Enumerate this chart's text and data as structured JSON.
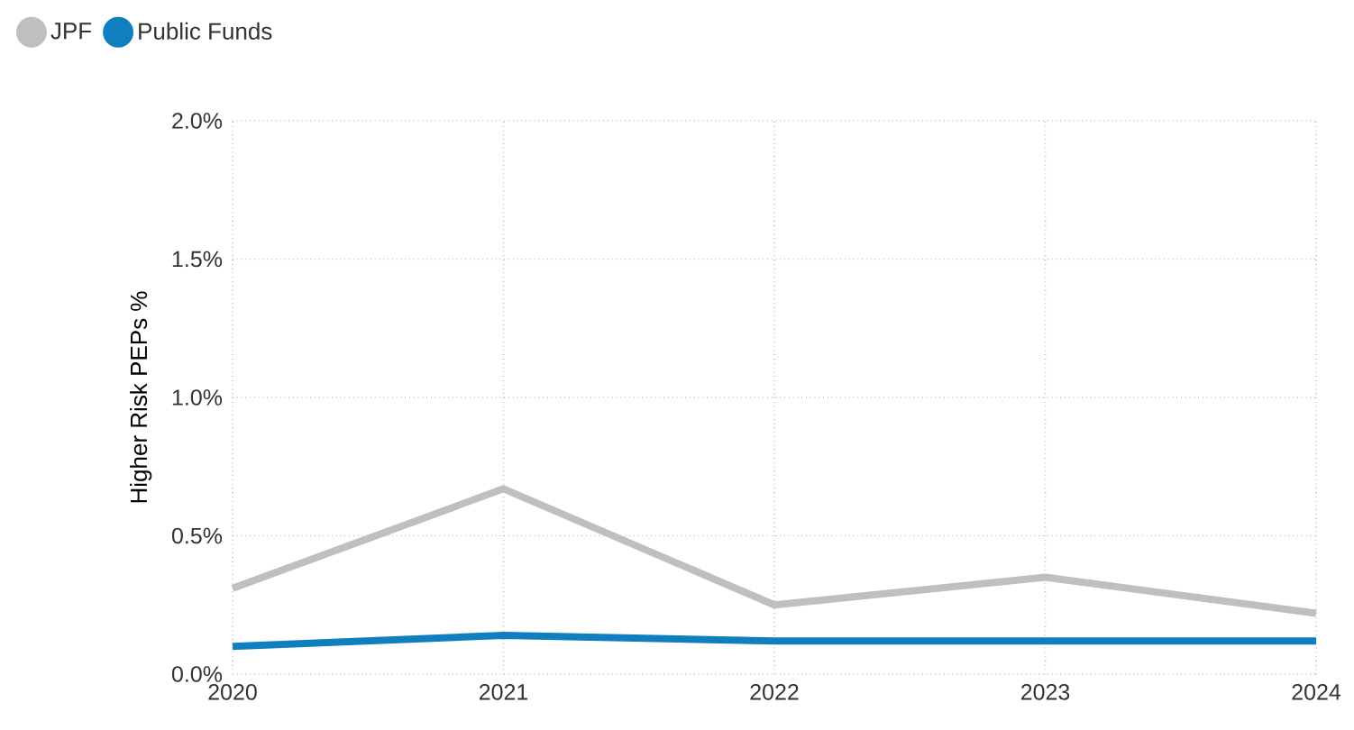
{
  "chart_data": {
    "type": "line",
    "ylabel": "Higher Risk PEPs %",
    "x": [
      2020,
      2021,
      2022,
      2023,
      2024
    ],
    "series": [
      {
        "name": "JPF",
        "color": "#bfbfbf",
        "values": [
          0.31,
          0.67,
          0.25,
          0.35,
          0.22
        ]
      },
      {
        "name": "Public Funds",
        "color": "#0f7fbf",
        "values": [
          0.1,
          0.14,
          0.12,
          0.12,
          0.12
        ]
      }
    ],
    "xlim": [
      2020,
      2024
    ],
    "xticks": [
      2020,
      2021,
      2022,
      2023,
      2024
    ],
    "ylim": [
      0,
      2.0
    ],
    "yticks": [
      {
        "value": 0,
        "label": "0.0%"
      },
      {
        "value": 0.5,
        "label": "0.5%"
      },
      {
        "value": 1.0,
        "label": "1.0%"
      },
      {
        "value": 1.5,
        "label": "1.5%"
      },
      {
        "value": 2.0,
        "label": "2.0%"
      }
    ],
    "grid": true,
    "legend": "top left",
    "marker": "none",
    "line_style": "solid"
  }
}
